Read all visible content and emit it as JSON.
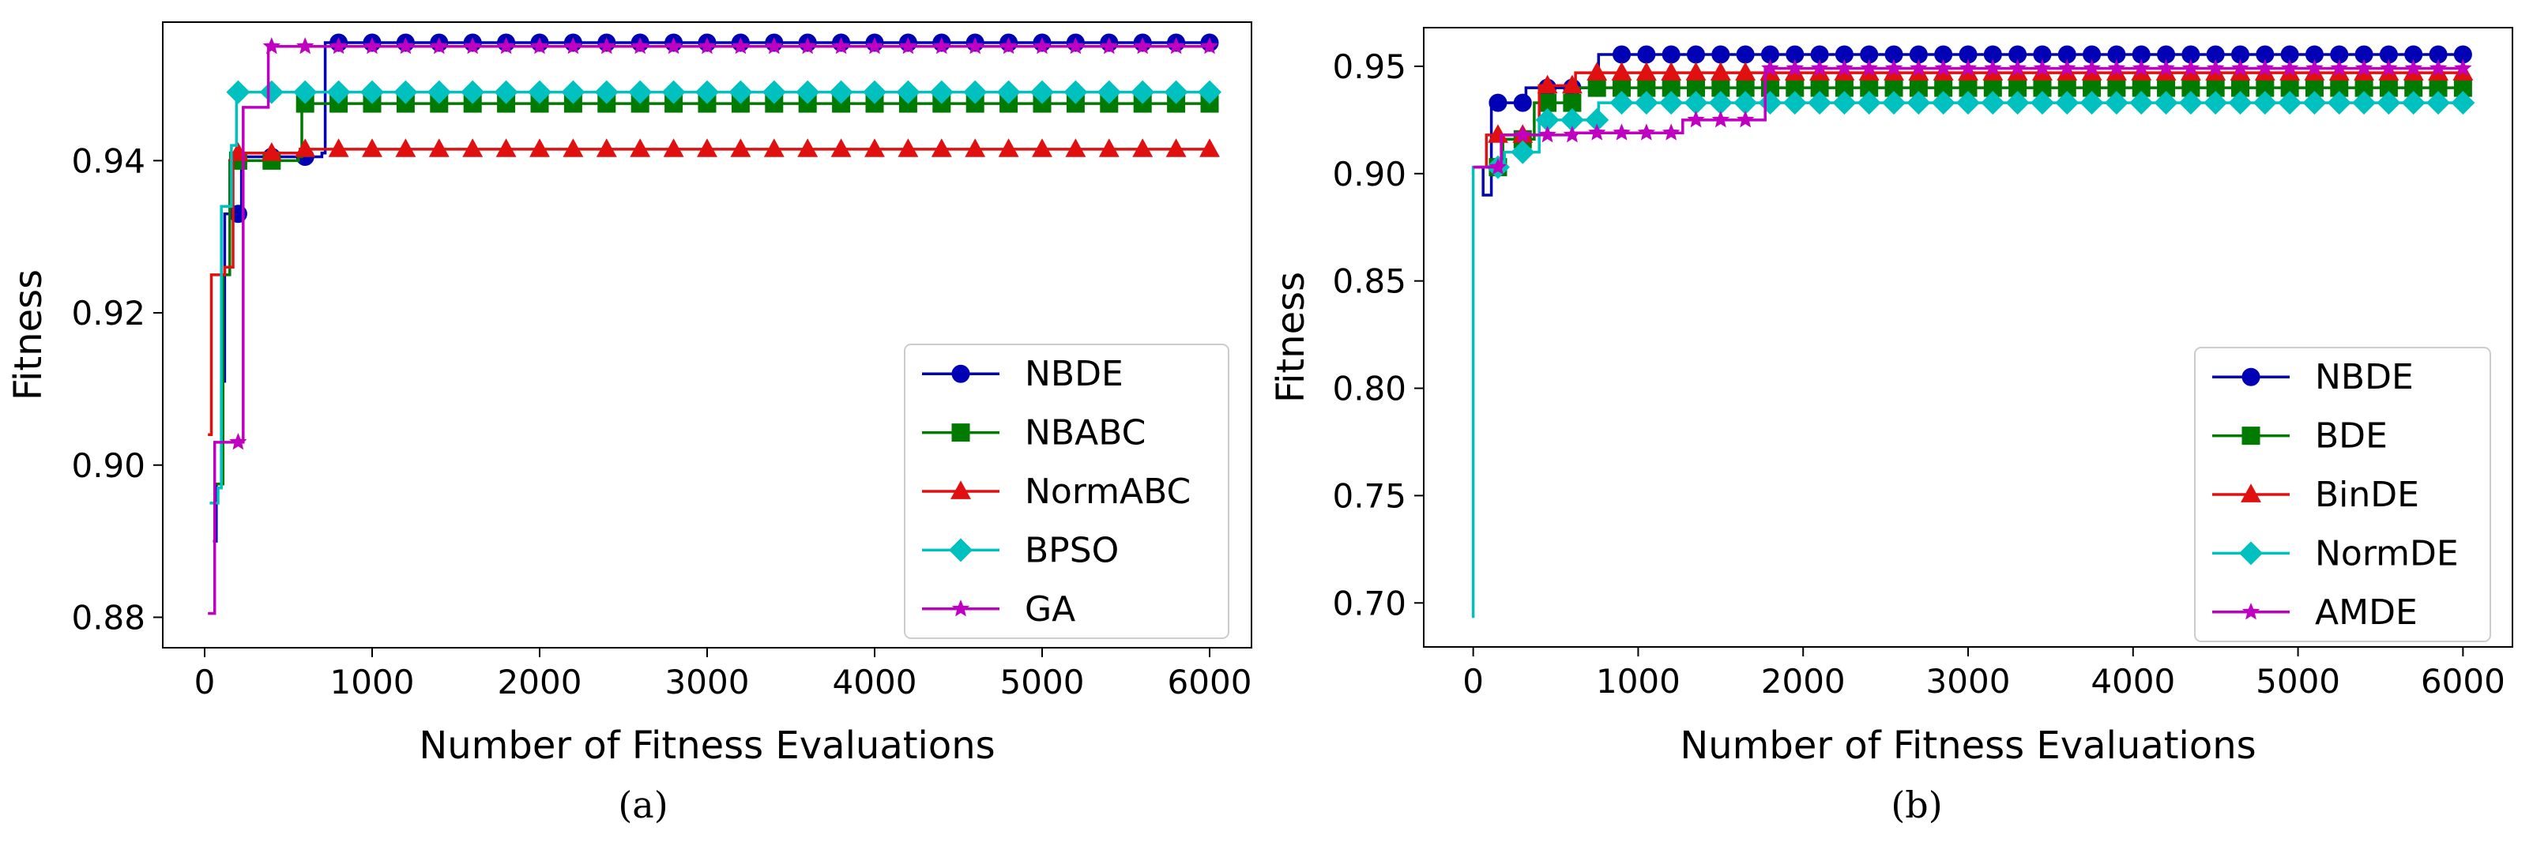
{
  "chart_data": [
    {
      "type": "line",
      "panel": "a",
      "caption": "(a)",
      "title": "",
      "xlabel": "Number of Fitness Evaluations",
      "ylabel": "Fitness",
      "xlim": [
        -250,
        6250
      ],
      "ylim": [
        0.876,
        0.9582
      ],
      "xticks": [
        0,
        1000,
        2000,
        3000,
        4000,
        5000,
        6000
      ],
      "yticks": [
        0.88,
        0.9,
        0.92,
        0.94
      ],
      "ytick_labels": [
        "0.88",
        "0.90",
        "0.92",
        "0.94"
      ],
      "grid": false,
      "legend_position": "lower-right",
      "marker_spacing": 200,
      "series": [
        {
          "name": "NBDE",
          "color": "#0000b4",
          "marker": "circle",
          "points": [
            [
              50,
              0.89
            ],
            [
              70,
              0.8975
            ],
            [
              100,
              0.911
            ],
            [
              120,
              0.933
            ],
            [
              200,
              0.933
            ],
            [
              220,
              0.9405
            ],
            [
              700,
              0.941
            ],
            [
              720,
              0.9555
            ],
            [
              6000,
              0.9555
            ]
          ]
        },
        {
          "name": "NBABC",
          "color": "#007a00",
          "marker": "square",
          "points": [
            [
              70,
              0.8975
            ],
            [
              110,
              0.925
            ],
            [
              150,
              0.94
            ],
            [
              560,
              0.9405
            ],
            [
              580,
              0.9475
            ],
            [
              6000,
              0.9475
            ]
          ]
        },
        {
          "name": "NormABC",
          "color": "#e01010",
          "marker": "triangle",
          "points": [
            [
              20,
              0.904
            ],
            [
              40,
              0.925
            ],
            [
              120,
              0.926
            ],
            [
              170,
              0.941
            ],
            [
              550,
              0.941
            ],
            [
              570,
              0.9415
            ],
            [
              6000,
              0.9415
            ]
          ]
        },
        {
          "name": "BPSO",
          "color": "#00c0c0",
          "marker": "diamond",
          "points": [
            [
              30,
              0.895
            ],
            [
              80,
              0.897
            ],
            [
              100,
              0.934
            ],
            [
              160,
              0.942
            ],
            [
              190,
              0.949
            ],
            [
              6000,
              0.949
            ]
          ]
        },
        {
          "name": "GA",
          "color": "#c000c0",
          "marker": "star",
          "points": [
            [
              20,
              0.8805
            ],
            [
              40,
              0.8805
            ],
            [
              60,
              0.903
            ],
            [
              200,
              0.903
            ],
            [
              230,
              0.947
            ],
            [
              360,
              0.947
            ],
            [
              380,
              0.955
            ],
            [
              6000,
              0.955
            ]
          ]
        }
      ]
    },
    {
      "type": "line",
      "panel": "b",
      "caption": "(b)",
      "title": "",
      "xlabel": "Number of Fitness Evaluations",
      "ylabel": "Fitness",
      "xlim": [
        -300,
        6300
      ],
      "ylim": [
        0.6795,
        0.968
      ],
      "xticks": [
        0,
        1000,
        2000,
        3000,
        4000,
        5000,
        6000
      ],
      "yticks": [
        0.7,
        0.75,
        0.8,
        0.85,
        0.9,
        0.95
      ],
      "ytick_labels": [
        "0.70",
        "0.75",
        "0.80",
        "0.85",
        "0.90",
        "0.95"
      ],
      "grid": false,
      "legend_position": "lower-right",
      "marker_spacing": 150,
      "series": [
        {
          "name": "NBDE",
          "color": "#0000b4",
          "marker": "circle",
          "points": [
            [
              30,
              0.903
            ],
            [
              60,
              0.89
            ],
            [
              110,
              0.933
            ],
            [
              300,
              0.933
            ],
            [
              320,
              0.94
            ],
            [
              740,
              0.94
            ],
            [
              760,
              0.9555
            ],
            [
              6000,
              0.9555
            ]
          ]
        },
        {
          "name": "BDE",
          "color": "#007a00",
          "marker": "square",
          "points": [
            [
              0,
              0.903
            ],
            [
              160,
              0.903
            ],
            [
              180,
              0.916
            ],
            [
              350,
              0.916
            ],
            [
              370,
              0.933
            ],
            [
              600,
              0.933
            ],
            [
              620,
              0.94
            ],
            [
              6000,
              0.94
            ]
          ]
        },
        {
          "name": "BinDE",
          "color": "#e01010",
          "marker": "triangle",
          "points": [
            [
              0,
              0.903
            ],
            [
              60,
              0.903
            ],
            [
              80,
              0.918
            ],
            [
              380,
              0.918
            ],
            [
              400,
              0.941
            ],
            [
              600,
              0.941
            ],
            [
              620,
              0.947
            ],
            [
              6000,
              0.947
            ]
          ]
        },
        {
          "name": "NormDE",
          "color": "#00c0c0",
          "marker": "diamond",
          "points": [
            [
              0,
              0.693
            ],
            [
              0,
              0.903
            ],
            [
              170,
              0.903
            ],
            [
              190,
              0.91
            ],
            [
              380,
              0.91
            ],
            [
              400,
              0.925
            ],
            [
              740,
              0.925
            ],
            [
              760,
              0.933
            ],
            [
              6000,
              0.933
            ]
          ]
        },
        {
          "name": "AMDE",
          "color": "#c000c0",
          "marker": "star",
          "points": [
            [
              0,
              0.903
            ],
            [
              150,
              0.903
            ],
            [
              170,
              0.918
            ],
            [
              600,
              0.918
            ],
            [
              620,
              0.919
            ],
            [
              1250,
              0.919
            ],
            [
              1270,
              0.925
            ],
            [
              1750,
              0.925
            ],
            [
              1770,
              0.949
            ],
            [
              6000,
              0.949
            ]
          ]
        }
      ]
    }
  ]
}
